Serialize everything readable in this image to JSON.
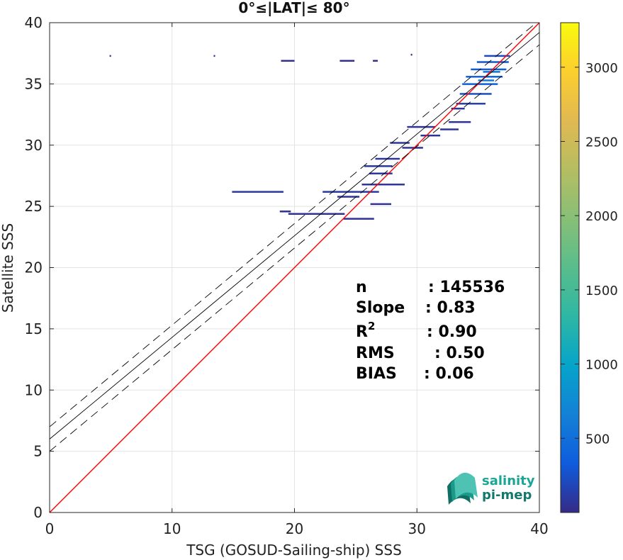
{
  "chart_data": {
    "type": "heatmap",
    "title": "0°≤|LAT|≤ 80°",
    "xlabel": "TSG (GOSUD-Sailing-ship) SSS",
    "ylabel": "Satellite SSS",
    "xlim": [
      0,
      40
    ],
    "ylim": [
      0,
      40
    ],
    "xticks": [
      0,
      10,
      20,
      30,
      40
    ],
    "yticks": [
      0,
      5,
      10,
      15,
      20,
      25,
      30,
      35,
      40
    ],
    "grid": true,
    "colorbar": {
      "range": [
        0,
        3300
      ],
      "ticks": [
        500,
        1000,
        1500,
        2000,
        2500,
        3000
      ]
    },
    "lines": [
      {
        "role": "identity",
        "slope": 1.0,
        "intercept": 0.0,
        "color": "#ff0000",
        "style": "solid"
      },
      {
        "role": "regression",
        "slope": 0.83,
        "intercept": 6.0,
        "color": "#000000",
        "style": "solid"
      },
      {
        "role": "upper-bound",
        "slope": 0.83,
        "intercept": 7.0,
        "color": "#000000",
        "style": "dashed"
      },
      {
        "role": "lower-bound",
        "slope": 0.83,
        "intercept": 5.0,
        "color": "#000000",
        "style": "dashed"
      }
    ],
    "density_segments": [
      {
        "x0": 4.9,
        "x1": 4.9,
        "y": 37.3,
        "count": 15
      },
      {
        "x0": 13.4,
        "x1": 13.4,
        "y": 37.3,
        "count": 15
      },
      {
        "x0": 18.9,
        "x1": 20.0,
        "y": 36.9,
        "count": 30
      },
      {
        "x0": 23.7,
        "x1": 24.9,
        "y": 36.9,
        "count": 30
      },
      {
        "x0": 26.4,
        "x1": 26.8,
        "y": 36.9,
        "count": 30
      },
      {
        "x0": 29.5,
        "x1": 29.6,
        "y": 37.4,
        "count": 30
      },
      {
        "x0": 14.9,
        "x1": 19.1,
        "y": 26.2,
        "count": 90
      },
      {
        "x0": 18.8,
        "x1": 19.7,
        "y": 24.6,
        "count": 60
      },
      {
        "x0": 19.5,
        "x1": 24.1,
        "y": 24.4,
        "count": 60
      },
      {
        "x0": 22.3,
        "x1": 26.9,
        "y": 26.2,
        "count": 100
      },
      {
        "x0": 23.5,
        "x1": 25.3,
        "y": 25.8,
        "count": 60
      },
      {
        "x0": 25.5,
        "x1": 29.0,
        "y": 26.8,
        "count": 80
      },
      {
        "x0": 26.2,
        "x1": 27.9,
        "y": 25.2,
        "count": 60
      },
      {
        "x0": 24.0,
        "x1": 26.5,
        "y": 24.0,
        "count": 60
      },
      {
        "x0": 26.1,
        "x1": 28.0,
        "y": 27.7,
        "count": 90
      },
      {
        "x0": 25.7,
        "x1": 28.0,
        "y": 28.3,
        "count": 100
      },
      {
        "x0": 26.6,
        "x1": 28.6,
        "y": 28.9,
        "count": 80
      },
      {
        "x0": 27.8,
        "x1": 29.4,
        "y": 30.2,
        "count": 70
      },
      {
        "x0": 28.8,
        "x1": 30.5,
        "y": 29.8,
        "count": 60
      },
      {
        "x0": 29.2,
        "x1": 31.5,
        "y": 31.5,
        "count": 70
      },
      {
        "x0": 30.3,
        "x1": 31.9,
        "y": 30.8,
        "count": 60
      },
      {
        "x0": 31.9,
        "x1": 33.4,
        "y": 31.3,
        "count": 60
      },
      {
        "x0": 32.6,
        "x1": 34.4,
        "y": 31.9,
        "count": 60
      },
      {
        "x0": 33.2,
        "x1": 35.6,
        "y": 33.4,
        "count": 150
      },
      {
        "x0": 33.5,
        "x1": 36.1,
        "y": 34.2,
        "count": 250
      },
      {
        "x0": 33.7,
        "x1": 36.6,
        "y": 35.0,
        "count": 350
      },
      {
        "x0": 34.0,
        "x1": 37.0,
        "y": 35.6,
        "count": 400
      },
      {
        "x0": 34.4,
        "x1": 37.3,
        "y": 36.2,
        "count": 350
      },
      {
        "x0": 34.9,
        "x1": 37.5,
        "y": 36.8,
        "count": 300
      },
      {
        "x0": 35.5,
        "x1": 37.6,
        "y": 37.3,
        "count": 200
      },
      {
        "x0": 35.0,
        "x1": 36.3,
        "y": 35.3,
        "count": 600
      },
      {
        "x0": 35.4,
        "x1": 36.8,
        "y": 36.0,
        "count": 550
      },
      {
        "x0": 32.8,
        "x1": 33.9,
        "y": 33.0,
        "count": 80
      }
    ],
    "stats": [
      {
        "label": "n",
        "value": ": 145536"
      },
      {
        "label": "Slope",
        "value": ": 0.83"
      },
      {
        "label": "R",
        "sup": "2",
        "value": ": 0.90"
      },
      {
        "label": "RMS",
        "value": ": 0.50"
      },
      {
        "label": "BIAS",
        "value": ": 0.06"
      }
    ]
  },
  "logo": {
    "line1": "salinity",
    "line2": "pi-mep"
  }
}
